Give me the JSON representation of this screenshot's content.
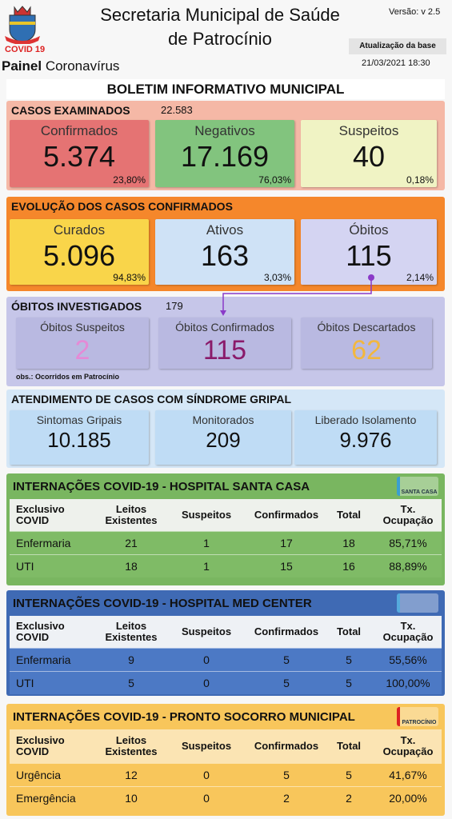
{
  "header": {
    "title_line1": "Secretaria Municipal de Saúde",
    "title_line2": "de Patrocínio",
    "version": "Versão: v 2.5",
    "update_button": "Atualização da base",
    "update_datetime": "21/03/2021 18:30",
    "covid_label": "COVID 19",
    "panel_bold": "Painel",
    "panel_rest": "Coronavírus"
  },
  "bulletin_title": "BOLETIM INFORMATIVO MUNICIPAL",
  "cases_examined": {
    "title": "CASOS EXAMINADOS",
    "total": "22.583",
    "cards": [
      {
        "label": "Confirmados",
        "value": "5.374",
        "percent": "23,80%"
      },
      {
        "label": "Negativos",
        "value": "17.169",
        "percent": "76,03%"
      },
      {
        "label": "Suspeitos",
        "value": "40",
        "percent": "0,18%"
      }
    ]
  },
  "confirmed_evolution": {
    "title": "EVOLUÇÃO DOS CASOS CONFIRMADOS",
    "cards": [
      {
        "label": "Curados",
        "value": "5.096",
        "percent": "94,83%"
      },
      {
        "label": "Ativos",
        "value": "163",
        "percent": "3,03%"
      },
      {
        "label": "Óbitos",
        "value": "115",
        "percent": "2,14%"
      }
    ]
  },
  "deaths_investigated": {
    "title": "ÓBITOS INVESTIGADOS",
    "total": "179",
    "cards": [
      {
        "label": "Óbitos Suspeitos",
        "value": "2"
      },
      {
        "label": "Óbitos Confirmados",
        "value": "115"
      },
      {
        "label": "Óbitos Descartados",
        "value": "62"
      }
    ],
    "note": "obs.: Ocorridos em Patrocínio"
  },
  "flu_syndrome": {
    "title": "ATENDIMENTO DE CASOS COM SÍNDROME GRIPAL",
    "cards": [
      {
        "label": "Sintomas Gripais",
        "value": "10.185"
      },
      {
        "label": "Monitorados",
        "value": "209"
      },
      {
        "label": "Liberado Isolamento",
        "value": "9.976"
      }
    ]
  },
  "hospitals": [
    {
      "title": "INTERNAÇÕES COVID-19 - HOSPITAL SANTA CASA",
      "logo_text": "SANTA CASA",
      "columns": [
        "Exclusivo COVID",
        "Leitos Existentes",
        "Suspeitos",
        "Confirmados",
        "Total",
        "Tx. Ocupação"
      ],
      "rows": [
        [
          "Enfermaria",
          21,
          1,
          17,
          18,
          "85,71%"
        ],
        [
          "UTI",
          18,
          1,
          15,
          16,
          "88,89%"
        ]
      ]
    },
    {
      "title": "INTERNAÇÕES COVID-19 - HOSPITAL MED CENTER",
      "columns": [
        "Exclusivo COVID",
        "Leitos Existentes",
        "Suspeitos",
        "Confirmados",
        "Total",
        "Tx. Ocupação"
      ],
      "rows": [
        [
          "Enfermaria",
          9,
          0,
          5,
          5,
          "55,56%"
        ],
        [
          "UTI",
          5,
          0,
          5,
          5,
          "100,00%"
        ]
      ]
    },
    {
      "title": "INTERNAÇÕES COVID-19 - PRONTO SOCORRO MUNICIPAL",
      "logo_text": "PATROCÍNIO",
      "columns": [
        "Exclusivo COVID",
        "Leitos Existentes",
        "Suspeitos",
        "Confirmados",
        "Total",
        "Tx. Ocupação"
      ],
      "rows": [
        [
          "Urgência",
          12,
          0,
          5,
          5,
          "41,67%"
        ],
        [
          "Emergência",
          10,
          0,
          2,
          2,
          "20,00%"
        ]
      ]
    }
  ]
}
